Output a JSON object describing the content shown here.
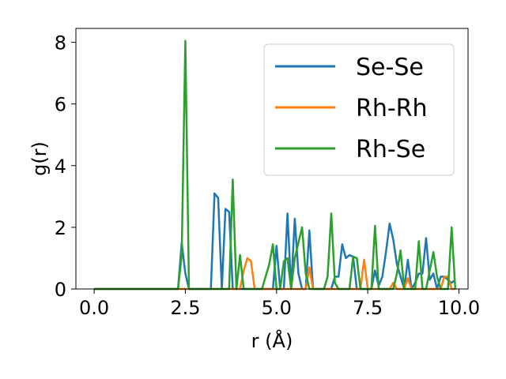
{
  "chart_data": {
    "type": "line",
    "xlabel": "r (Å)",
    "ylabel": "g(r)",
    "xlim": [
      -0.5,
      10.25
    ],
    "ylim": [
      0,
      8.45
    ],
    "xticks": [
      0.0,
      2.5,
      5.0,
      7.5,
      10.0
    ],
    "xtick_labels": [
      "0.0",
      "2.5",
      "5.0",
      "7.5",
      "10.0"
    ],
    "yticks": [
      0,
      2,
      4,
      6,
      8
    ],
    "ytick_labels": [
      "0",
      "2",
      "4",
      "6",
      "8"
    ],
    "grid": false,
    "legend_position": "top-right",
    "series": [
      {
        "name": "Se-Se",
        "color": "#1f77b4",
        "points": [
          [
            0,
            0
          ],
          [
            2.2,
            0
          ],
          [
            2.3,
            0
          ],
          [
            2.4,
            1.5
          ],
          [
            2.5,
            0.5
          ],
          [
            2.6,
            0
          ],
          [
            3.2,
            0
          ],
          [
            3.3,
            3.1
          ],
          [
            3.4,
            2.95
          ],
          [
            3.5,
            0
          ],
          [
            3.6,
            2.6
          ],
          [
            3.7,
            2.5
          ],
          [
            3.8,
            0
          ],
          [
            4.9,
            0
          ],
          [
            5.0,
            1.4
          ],
          [
            5.1,
            0
          ],
          [
            5.2,
            0
          ],
          [
            5.3,
            2.45
          ],
          [
            5.4,
            0
          ],
          [
            5.5,
            2.28
          ],
          [
            5.6,
            0.5
          ],
          [
            5.7,
            0
          ],
          [
            5.8,
            0
          ],
          [
            5.9,
            1.9
          ],
          [
            6.0,
            0
          ],
          [
            6.5,
            0
          ],
          [
            6.6,
            0.4
          ],
          [
            6.7,
            0.4
          ],
          [
            6.8,
            1.45
          ],
          [
            6.9,
            1.0
          ],
          [
            7.0,
            1.1
          ],
          [
            7.1,
            1.05
          ],
          [
            7.2,
            0
          ],
          [
            7.6,
            0
          ],
          [
            7.7,
            0.6
          ],
          [
            7.8,
            0.1
          ],
          [
            7.9,
            0.4
          ],
          [
            8.0,
            1.2
          ],
          [
            8.1,
            2.12
          ],
          [
            8.2,
            1.6
          ],
          [
            8.3,
            0.8
          ],
          [
            8.4,
            0.4
          ],
          [
            8.5,
            0
          ],
          [
            8.6,
            0.95
          ],
          [
            8.7,
            0
          ],
          [
            8.8,
            0.2
          ],
          [
            8.9,
            0.5
          ],
          [
            9.0,
            0.5
          ],
          [
            9.1,
            1.65
          ],
          [
            9.2,
            0.3
          ],
          [
            9.3,
            0.5
          ],
          [
            9.4,
            0
          ],
          [
            9.5,
            0.4
          ],
          [
            9.6,
            0.4
          ],
          [
            9.7,
            0.3
          ],
          [
            9.8,
            0.2
          ],
          [
            9.9,
            0.3
          ]
        ]
      },
      {
        "name": "Rh-Rh",
        "color": "#ff7f0e",
        "points": [
          [
            0,
            0
          ],
          [
            4.0,
            0
          ],
          [
            4.1,
            0.6
          ],
          [
            4.2,
            1.0
          ],
          [
            4.3,
            0.9
          ],
          [
            4.4,
            0
          ],
          [
            5.8,
            0
          ],
          [
            5.9,
            0.7
          ],
          [
            6.0,
            0
          ],
          [
            7.3,
            0
          ],
          [
            7.4,
            0.95
          ],
          [
            7.5,
            0
          ],
          [
            8.1,
            0
          ],
          [
            8.2,
            0.2
          ],
          [
            8.3,
            0
          ],
          [
            8.5,
            0
          ],
          [
            8.6,
            0.35
          ],
          [
            8.7,
            0
          ],
          [
            9.5,
            0
          ],
          [
            9.6,
            0.4
          ],
          [
            9.7,
            0.4
          ],
          [
            9.8,
            0
          ],
          [
            9.9,
            0
          ]
        ]
      },
      {
        "name": "Rh-Se",
        "color": "#2ca02c",
        "points": [
          [
            0,
            0
          ],
          [
            2.3,
            0
          ],
          [
            2.4,
            1.1
          ],
          [
            2.5,
            8.05
          ],
          [
            2.6,
            0
          ],
          [
            3.7,
            0
          ],
          [
            3.8,
            3.55
          ],
          [
            3.9,
            0
          ],
          [
            4.0,
            1.1
          ],
          [
            4.1,
            0
          ],
          [
            4.6,
            0
          ],
          [
            4.7,
            0.4
          ],
          [
            4.8,
            0.8
          ],
          [
            4.9,
            1.45
          ],
          [
            5.0,
            0
          ],
          [
            5.1,
            0
          ],
          [
            5.2,
            0.9
          ],
          [
            5.3,
            1.0
          ],
          [
            5.4,
            0
          ],
          [
            5.5,
            1.0
          ],
          [
            5.6,
            1.5
          ],
          [
            5.7,
            2.0
          ],
          [
            5.8,
            0.5
          ],
          [
            5.9,
            0
          ],
          [
            6.3,
            0
          ],
          [
            6.4,
            0.4
          ],
          [
            6.5,
            2.45
          ],
          [
            6.6,
            0.2
          ],
          [
            6.7,
            0
          ],
          [
            7.0,
            0
          ],
          [
            7.1,
            1.05
          ],
          [
            7.2,
            1.0
          ],
          [
            7.3,
            0
          ],
          [
            7.6,
            0
          ],
          [
            7.7,
            2.05
          ],
          [
            7.8,
            0
          ],
          [
            8.2,
            0
          ],
          [
            8.3,
            0.5
          ],
          [
            8.4,
            1.25
          ],
          [
            8.5,
            0
          ],
          [
            8.8,
            0
          ],
          [
            8.9,
            1.55
          ],
          [
            9.0,
            0
          ],
          [
            9.1,
            0
          ],
          [
            9.2,
            0.6
          ],
          [
            9.3,
            1.2
          ],
          [
            9.4,
            0.4
          ],
          [
            9.5,
            0
          ],
          [
            9.7,
            0
          ],
          [
            9.8,
            2.0
          ],
          [
            9.9,
            0
          ]
        ]
      }
    ]
  }
}
